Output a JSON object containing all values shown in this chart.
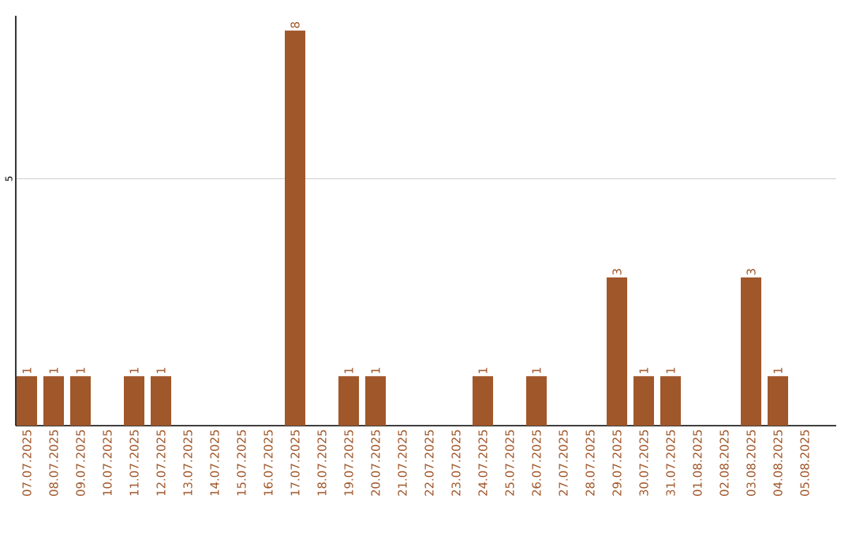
{
  "chart_data": {
    "type": "bar",
    "categories": [
      "07.07.2025",
      "08.07.2025",
      "09.07.2025",
      "10.07.2025",
      "11.07.2025",
      "12.07.2025",
      "13.07.2025",
      "14.07.2025",
      "15.07.2025",
      "16.07.2025",
      "17.07.2025",
      "18.07.2025",
      "19.07.2025",
      "20.07.2025",
      "21.07.2025",
      "22.07.2025",
      "23.07.2025",
      "24.07.2025",
      "25.07.2025",
      "26.07.2025",
      "27.07.2025",
      "28.07.2025",
      "29.07.2025",
      "30.07.2025",
      "31.07.2025",
      "01.08.2025",
      "02.08.2025",
      "03.08.2025",
      "04.08.2025",
      "05.08.2025"
    ],
    "values": [
      1,
      1,
      1,
      0,
      1,
      1,
      0,
      0,
      0,
      0,
      8,
      0,
      1,
      1,
      0,
      0,
      0,
      1,
      0,
      1,
      0,
      0,
      3,
      1,
      1,
      0,
      0,
      3,
      1,
      0
    ],
    "value_labels": [
      "1",
      "1",
      "1",
      null,
      "1",
      "1",
      null,
      null,
      null,
      null,
      "8",
      null,
      "1",
      "1",
      null,
      null,
      null,
      "1",
      null,
      "1",
      null,
      null,
      "3",
      "1",
      "1",
      null,
      null,
      "3",
      "1",
      null
    ],
    "color": "#a0572a",
    "ylim": [
      0,
      8.3
    ],
    "yticks": [
      5
    ],
    "grid": "y"
  }
}
